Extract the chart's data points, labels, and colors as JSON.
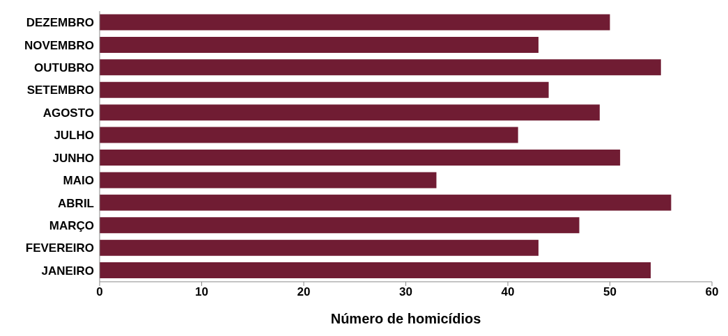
{
  "chart_data": {
    "type": "bar",
    "orientation": "horizontal",
    "xlabel": "Número de homicídios",
    "categories": [
      "DEZEMBRO",
      "NOVEMBRO",
      "OUTUBRO",
      "SETEMBRO",
      "AGOSTO",
      "JULHO",
      "JUNHO",
      "MAIO",
      "ABRIL",
      "MARÇO",
      "FEVEREIRO",
      "JANEIRO"
    ],
    "values": [
      50,
      43,
      55,
      44,
      49,
      41,
      51,
      33,
      56,
      47,
      43,
      54
    ],
    "color": "#701c33",
    "xlim": [
      0,
      60
    ],
    "xticks": [
      0,
      10,
      20,
      30,
      40,
      50,
      60
    ],
    "grid": false,
    "legend": false
  }
}
